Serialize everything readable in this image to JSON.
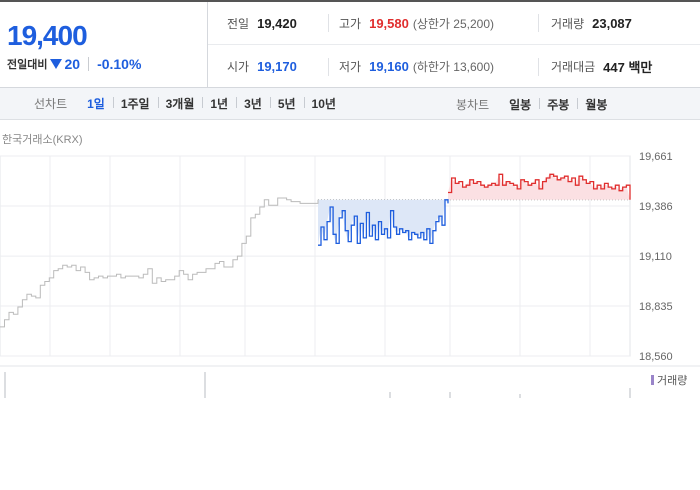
{
  "quote": {
    "current_price": "19,400",
    "change_label": "전일대비",
    "change_amount": "20",
    "change_rate": "-0.10%",
    "direction": "down"
  },
  "stats": {
    "prev_close": {
      "label": "전일",
      "value": "19,420"
    },
    "high": {
      "label": "고가",
      "value": "19,580",
      "sub": "(상한가 25,200)"
    },
    "volume": {
      "label": "거래량",
      "value": "23,087"
    },
    "open": {
      "label": "시가",
      "value": "19,170"
    },
    "low": {
      "label": "저가",
      "value": "19,160",
      "sub": "(하한가 13,600)"
    },
    "trade_value": {
      "label": "거래대금",
      "value": "447 백만"
    }
  },
  "toolbar": {
    "line_chart_label": "선차트",
    "line_periods": [
      "1일",
      "1주일",
      "3개월",
      "1년",
      "3년",
      "5년",
      "10년"
    ],
    "active_period": "1일",
    "candle_chart_label": "봉차트",
    "candle_periods": [
      "일봉",
      "주봉",
      "월봉"
    ]
  },
  "source_label": "한국거래소(KRX)",
  "volume_legend": "거래량",
  "colors": {
    "up": "#e02e2e",
    "down": "#1e5ede",
    "neutral": "#bbbbbb",
    "volume": "#9a85c9"
  },
  "chart_data": {
    "type": "line",
    "title": "",
    "xlabel": "",
    "ylabel": "",
    "ylim": [
      18560,
      19661
    ],
    "y_ticks": [
      "19,661",
      "19,386",
      "19,110",
      "18,835",
      "18,560"
    ],
    "y_tick_values": [
      19661,
      19386,
      19110,
      18835,
      18560
    ],
    "reference_price": 19420,
    "series": [
      {
        "role": "previous-day",
        "values": [
          18720,
          18760,
          18800,
          18790,
          18830,
          18870,
          18900,
          18890,
          18880,
          18950,
          18970,
          18990,
          19030,
          19040,
          19060,
          19050,
          19060,
          19030,
          19050,
          19020,
          18980,
          18990,
          19000,
          18990,
          19000,
          19000,
          19010,
          18990,
          19000,
          19000,
          19000,
          18990,
          19010,
          19040,
          18960,
          18990,
          18970,
          18980,
          18980,
          19000,
          19030,
          19010,
          18980,
          19010,
          19020,
          19020,
          19040,
          19040,
          19070,
          19080,
          19050,
          19050,
          19090,
          19110,
          19180,
          19220,
          19320,
          19340,
          19380,
          19420,
          19390,
          19390,
          19430,
          19430,
          19420,
          19410,
          19410,
          19400,
          19400,
          19400,
          19400,
          19420
        ]
      },
      {
        "role": "today-below-ref",
        "values": [
          19170,
          19270,
          19200,
          19300,
          19380,
          19230,
          19180,
          19320,
          19360,
          19250,
          19190,
          19280,
          19330,
          19180,
          19290,
          19210,
          19350,
          19220,
          19280,
          19200,
          19300,
          19230,
          19260,
          19210,
          19360,
          19270,
          19230,
          19260,
          19240,
          19250,
          19200,
          19240,
          19230,
          19210,
          19240,
          19200,
          19260,
          19180,
          19250,
          19300,
          19330,
          19280,
          19420,
          19400
        ]
      },
      {
        "role": "today-above-ref",
        "values": [
          19460,
          19540,
          19510,
          19520,
          19490,
          19500,
          19530,
          19510,
          19520,
          19500,
          19490,
          19500,
          19510,
          19500,
          19560,
          19500,
          19520,
          19510,
          19500,
          19480,
          19530,
          19520,
          19500,
          19510,
          19530,
          19480,
          19520,
          19540,
          19560,
          19550,
          19530,
          19540,
          19550,
          19520,
          19540,
          19500,
          19550,
          19530,
          19510,
          19520,
          19480,
          19500,
          19480,
          19510,
          19490,
          19480,
          19500,
          19470,
          19490,
          19500,
          19420
        ]
      }
    ]
  }
}
